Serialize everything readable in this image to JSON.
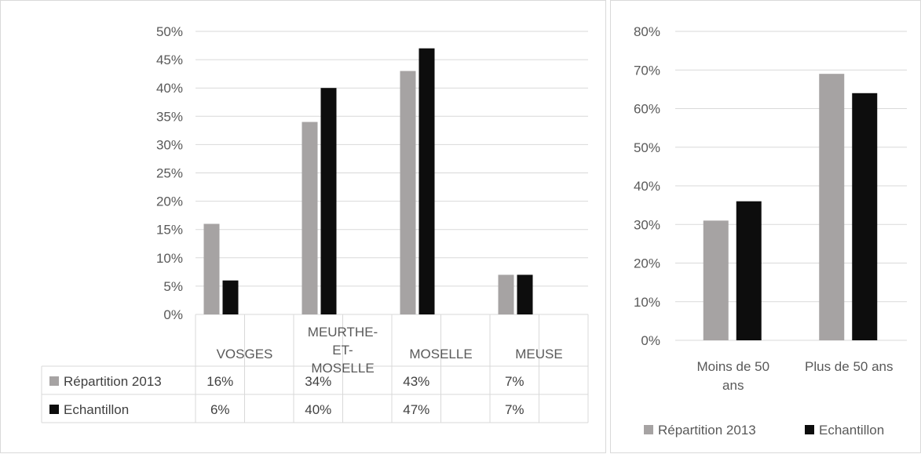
{
  "colors": {
    "series_1": "#a6a3a3",
    "series_2": "#0d0d0d",
    "grid": "#d9d9d9",
    "text": "#595959"
  },
  "chart_data": [
    {
      "type": "bar",
      "categories": [
        "VOSGES",
        "MEURTHE-ET-MOSELLE",
        "MOSELLE",
        "MEUSE"
      ],
      "category_lines": [
        [
          "VOSGES"
        ],
        [
          "MEURTHE-",
          "ET-",
          "MOSELLE"
        ],
        [
          "MOSELLE"
        ],
        [
          "MEUSE"
        ]
      ],
      "series": [
        {
          "name": "Répartition 2013",
          "values": [
            16,
            34,
            43,
            7
          ],
          "labels": [
            "16%",
            "34%",
            "43%",
            "7%"
          ]
        },
        {
          "name": "Echantillon",
          "values": [
            6,
            40,
            47,
            7
          ],
          "labels": [
            "6%",
            "40%",
            "47%",
            "7%"
          ]
        }
      ],
      "ylim": [
        0,
        50
      ],
      "yticks": [
        "0%",
        "5%",
        "10%",
        "15%",
        "20%",
        "25%",
        "30%",
        "35%",
        "40%",
        "45%",
        "50%"
      ],
      "grid": true,
      "data_table": true
    },
    {
      "type": "bar",
      "categories": [
        "Moins de 50 ans",
        "Plus de 50 ans"
      ],
      "category_lines": [
        [
          "Moins de 50",
          "ans"
        ],
        [
          "Plus de 50 ans"
        ]
      ],
      "series": [
        {
          "name": "Répartition 2013",
          "values": [
            31,
            69
          ]
        },
        {
          "name": "Echantillon",
          "values": [
            36,
            64
          ]
        }
      ],
      "ylim": [
        0,
        80
      ],
      "yticks": [
        "0%",
        "10%",
        "20%",
        "30%",
        "40%",
        "50%",
        "60%",
        "70%",
        "80%"
      ],
      "grid": true,
      "legend_position": "bottom"
    }
  ]
}
